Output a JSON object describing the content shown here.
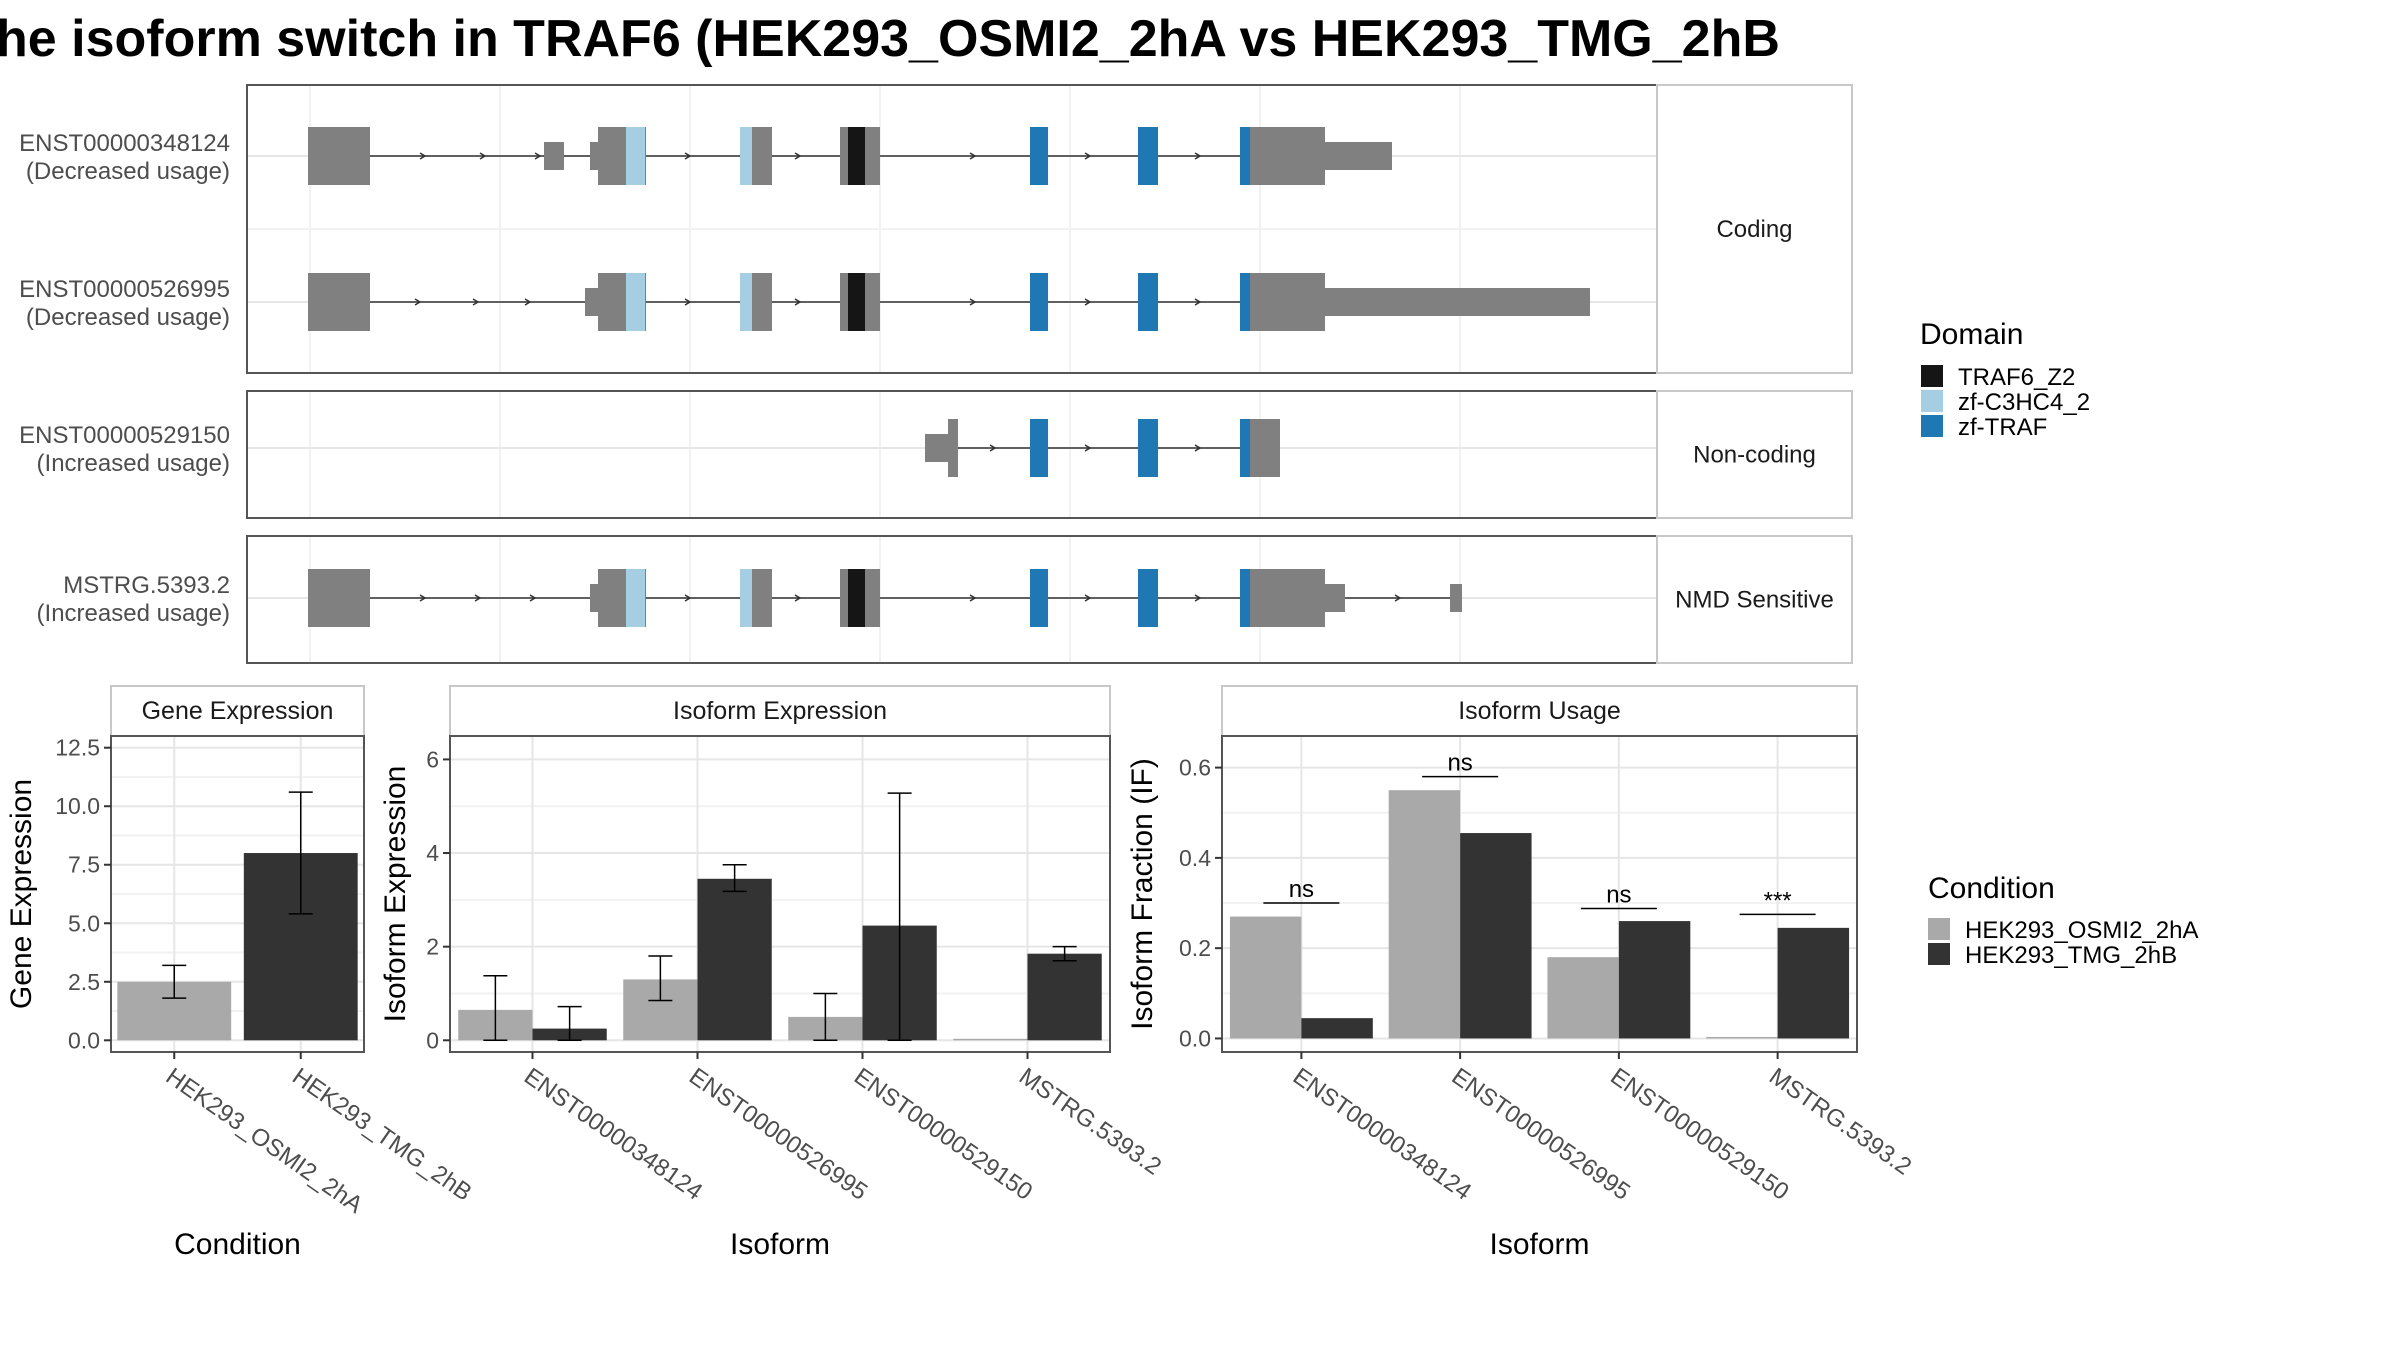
{
  "title": "he isoform switch in TRAF6 (HEK293_OSMI2_2hA vs HEK293_TMG_2hB",
  "colors": {
    "exon": "#808080",
    "TRAF6_Z2": "#151515",
    "zf-C3HC4_2": "#a6cee3",
    "zf-TRAF": "#1f78b4",
    "cond_A": "#a9a9a9",
    "cond_B": "#333333"
  },
  "chart_data": [
    {
      "type": "diagram",
      "panel": "transcript-structure",
      "facets": [
        {
          "label": "Coding",
          "transcripts": [
            {
              "name": "ENST00000348124",
              "status": "(Decreased usage)"
            },
            {
              "name": "ENST00000526995",
              "status": "(Decreased usage)"
            }
          ]
        },
        {
          "label": "Non-coding",
          "transcripts": [
            {
              "name": "ENST00000529150",
              "status": "(Increased usage)"
            }
          ]
        },
        {
          "label": "NMD Sensitive",
          "transcripts": [
            {
              "name": "MSTRG.5393.2",
              "status": "(Increased usage)"
            }
          ]
        }
      ],
      "legend": {
        "title": "Domain",
        "entries": [
          "TRAF6_Z2",
          "zf-C3HC4_2",
          "zf-TRAF"
        ],
        "position": "right"
      }
    },
    {
      "type": "bar",
      "title": "Gene Expression",
      "xlabel": "Condition",
      "ylabel": "Gene Expression",
      "categories": [
        "HEK293_OSMI2_2hA",
        "HEK293_TMG_2hB"
      ],
      "values": [
        2.5,
        8.0
      ],
      "errors": [
        [
          1.8,
          3.2
        ],
        [
          5.4,
          10.6
        ]
      ],
      "ylim": [
        -0.5,
        13
      ],
      "yticks": [
        0.0,
        2.5,
        5.0,
        7.5,
        10.0,
        12.5
      ],
      "ytick_labels": [
        "0.0",
        "2.5",
        "5.0",
        "7.5",
        "10.0",
        "12.5"
      ],
      "grid": true
    },
    {
      "type": "bar",
      "title": "Isoform Expression",
      "xlabel": "Isoform",
      "ylabel": "Isoform Expression",
      "categories": [
        "ENST00000348124",
        "ENST00000526995",
        "ENST00000529150",
        "MSTRG.5393.2"
      ],
      "series": [
        {
          "name": "HEK293_OSMI2_2hA",
          "values": [
            0.65,
            1.3,
            0.5,
            0.0
          ],
          "errors": [
            [
              0.0,
              1.38
            ],
            [
              0.85,
              1.8
            ],
            [
              0.0,
              1.0
            ],
            [
              0.0,
              0.0
            ]
          ]
        },
        {
          "name": "HEK293_TMG_2hB",
          "values": [
            0.25,
            3.45,
            2.45,
            1.85
          ],
          "errors": [
            [
              0.0,
              0.72
            ],
            [
              3.18,
              3.75
            ],
            [
              0.0,
              5.28
            ],
            [
              1.7,
              2.0
            ]
          ]
        }
      ],
      "ylim": [
        -0.25,
        6.5
      ],
      "yticks": [
        0,
        2,
        4,
        6
      ],
      "ytick_labels": [
        "0",
        "2",
        "4",
        "6"
      ],
      "grid": true
    },
    {
      "type": "bar",
      "title": "Isoform Usage",
      "xlabel": "Isoform",
      "ylabel": "Isoform Fraction (IF)",
      "categories": [
        "ENST00000348124",
        "ENST00000526995",
        "ENST00000529150",
        "MSTRG.5393.2"
      ],
      "series": [
        {
          "name": "HEK293_OSMI2_2hA",
          "values": [
            0.27,
            0.55,
            0.18,
            0.0
          ]
        },
        {
          "name": "HEK293_TMG_2hB",
          "values": [
            0.045,
            0.455,
            0.26,
            0.245
          ]
        }
      ],
      "significance": [
        "ns",
        "ns",
        "ns",
        "***"
      ],
      "significance_y": [
        0.3,
        0.58,
        0.288,
        0.275
      ],
      "ylim": [
        -0.03,
        0.67
      ],
      "yticks": [
        0.0,
        0.2,
        0.4,
        0.6
      ],
      "ytick_labels": [
        "0.0",
        "0.2",
        "0.4",
        "0.6"
      ],
      "grid": true,
      "legend": {
        "title": "Condition",
        "entries": [
          "HEK293_OSMI2_2hA",
          "HEK293_TMG_2hB"
        ],
        "position": "right"
      }
    }
  ]
}
